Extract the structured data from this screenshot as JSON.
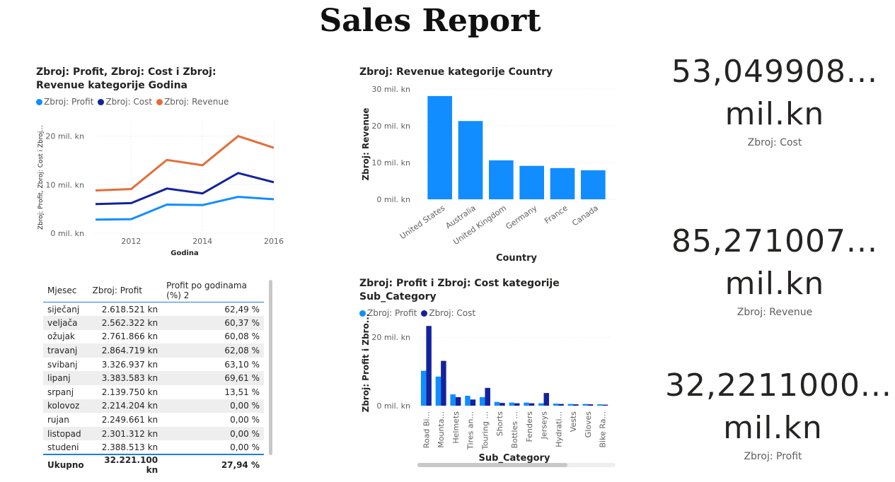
{
  "page": {
    "title": "Sales Report"
  },
  "colors": {
    "profit": "#118DFF",
    "cost": "#12239E",
    "revenue": "#E66C37",
    "bar": "#118DFF",
    "grid": "#e0e0e0",
    "axis_text": "#605e5c"
  },
  "chart_data": [
    {
      "id": "line-chart",
      "type": "line",
      "title": "Zbroj: Profit, Zbroj: Cost i Zbroj: Revenue kategorije Godina",
      "xlabel": "Godina",
      "ylabel": "Zbroj: Profit, Zbroj: Cost i Zbroj...",
      "x": [
        2011,
        2012,
        2013,
        2014,
        2015,
        2016
      ],
      "xticks": [
        2012,
        2014,
        2016
      ],
      "xlim": [
        2011,
        2016
      ],
      "yticks": [
        "0 mil. kn",
        "10 mil. kn",
        "20 mil. kn"
      ],
      "ytick_values": [
        0,
        10,
        20
      ],
      "ylim": [
        0,
        23
      ],
      "legend_position": "top-left",
      "series": [
        {
          "name": "Zbroj: Profit",
          "color": "#118DFF",
          "values": [
            2.8,
            2.9,
            5.9,
            5.8,
            7.5,
            7.0
          ]
        },
        {
          "name": "Zbroj: Cost",
          "color": "#12239E",
          "values": [
            6.0,
            6.2,
            9.2,
            8.2,
            12.4,
            10.5
          ]
        },
        {
          "name": "Zbroj: Revenue",
          "color": "#E66C37",
          "values": [
            8.8,
            9.1,
            15.1,
            14.0,
            20.0,
            17.6
          ]
        }
      ]
    },
    {
      "id": "country-bar",
      "type": "bar",
      "title": "Zbroj: Revenue kategorije Country",
      "xlabel": "Country",
      "ylabel": "Zbroj: Revenue",
      "categories": [
        "United States",
        "Australia",
        "United Kingdom",
        "Germany",
        "France",
        "Canada"
      ],
      "values": [
        28.1,
        21.3,
        10.6,
        9.1,
        8.5,
        7.9
      ],
      "yticks": [
        "0 mil. kn",
        "10 mil. kn",
        "20 mil. kn",
        "30 mil. kn"
      ],
      "ytick_values": [
        0,
        10,
        20,
        30
      ],
      "ylim": [
        0,
        30
      ]
    },
    {
      "id": "subcat-bar",
      "type": "bar",
      "title": "Zbroj: Profit i Zbroj: Cost kategorije Sub_Category",
      "xlabel": "Sub_Category",
      "ylabel": "Zbroj: Profit i Zbro...",
      "categories": [
        "Road Bi...",
        "Mounta...",
        "Helmets",
        "Tires an...",
        "Touring ...",
        "Shorts",
        "Bottles ...",
        "Fenders",
        "Jerseys",
        "Hydrati...",
        "Vests",
        "Gloves",
        "Bike Ra..."
      ],
      "yticks": [
        "0 mil. kn",
        "20 mil. kn"
      ],
      "ytick_values": [
        0,
        20
      ],
      "ylim": [
        0,
        25
      ],
      "legend_position": "top-left",
      "series": [
        {
          "name": "Zbroj: Profit",
          "color": "#118DFF",
          "values": [
            10.2,
            8.5,
            3.3,
            2.9,
            2.5,
            1.1,
            0.9,
            0.9,
            0.7,
            0.6,
            0.5,
            0.5,
            0.4
          ]
        },
        {
          "name": "Zbroj: Cost",
          "color": "#12239E",
          "values": [
            23.3,
            13.1,
            2.5,
            1.8,
            5.2,
            0.8,
            0.7,
            0.7,
            3.7,
            0.5,
            0.4,
            0.4,
            0.3
          ]
        }
      ]
    }
  ],
  "table": {
    "headers": [
      "Mjesec",
      "Zbroj: Profit",
      "Profit po godinama (%) 2"
    ],
    "rows": [
      [
        "siječanj",
        "2.618.521 kn",
        "62,49 %"
      ],
      [
        "veljača",
        "2.562.322 kn",
        "60,37 %"
      ],
      [
        "ožujak",
        "2.761.866 kn",
        "60,08 %"
      ],
      [
        "travanj",
        "2.864.719 kn",
        "62,08 %"
      ],
      [
        "svibanj",
        "3.326.937 kn",
        "63,10 %"
      ],
      [
        "lipanj",
        "3.383.583 kn",
        "69,61 %"
      ],
      [
        "srpanj",
        "2.139.750 kn",
        "13,51 %"
      ],
      [
        "kolovoz",
        "2.214.204 kn",
        "0,00 %"
      ],
      [
        "rujan",
        "2.249.661 kn",
        "0,00 %"
      ],
      [
        "listopad",
        "2.301.312 kn",
        "0,00 %"
      ],
      [
        "studeni",
        "2.388.513 kn",
        "0,00 %"
      ]
    ],
    "total": [
      "Ukupno",
      "32.221.100 kn",
      "27,94 %"
    ]
  },
  "cards": [
    {
      "value_line1": "53,049908...",
      "value_line2": "mil.kn",
      "label": "Zbroj: Cost"
    },
    {
      "value_line1": "85,271007...",
      "value_line2": "mil.kn",
      "label": "Zbroj: Revenue"
    },
    {
      "value_line1": "32,2211000...",
      "value_line2": "mil.kn",
      "label": "Zbroj: Profit"
    }
  ]
}
